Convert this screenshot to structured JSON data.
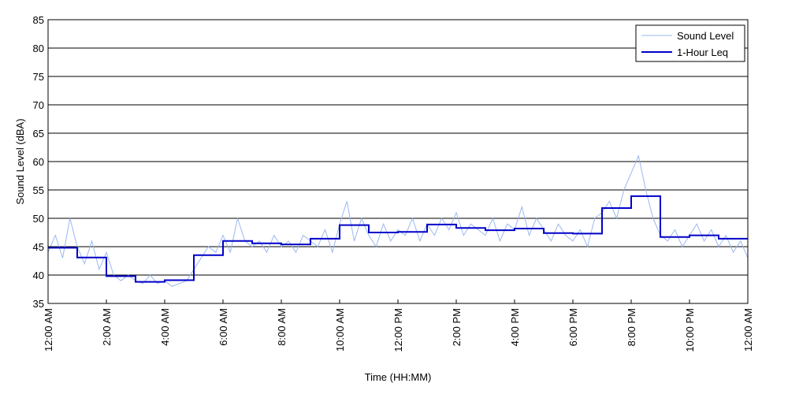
{
  "chart_data": {
    "type": "line",
    "xlabel": "Time (HH:MM)",
    "ylabel": "Sound Level (dBA)",
    "xlim": [
      0,
      24
    ],
    "ylim": [
      35,
      85
    ],
    "y_ticks": [
      35,
      40,
      45,
      50,
      55,
      60,
      65,
      70,
      75,
      80,
      85
    ],
    "x_ticks": [
      0,
      2,
      4,
      6,
      8,
      10,
      12,
      14,
      16,
      18,
      20,
      22,
      24
    ],
    "x_tick_labels": [
      "12:00 AM",
      "2:00 AM",
      "4:00 AM",
      "6:00 AM",
      "8:00 AM",
      "10:00 AM",
      "12:00 PM",
      "2:00 PM",
      "4:00 PM",
      "6:00 PM",
      "8:00 PM",
      "10:00 PM",
      "12:00 AM"
    ],
    "grid": "horizontal",
    "legend_position": "top-right",
    "series": [
      {
        "name": "Sound Level",
        "color": "#9ab8f0",
        "style": "thin",
        "x": [
          0,
          0.25,
          0.5,
          0.75,
          1,
          1.25,
          1.5,
          1.75,
          2,
          2.25,
          2.5,
          2.75,
          3,
          3.25,
          3.5,
          3.75,
          4,
          4.25,
          4.5,
          4.75,
          5,
          5.25,
          5.5,
          5.75,
          6,
          6.25,
          6.5,
          6.75,
          7,
          7.25,
          7.5,
          7.75,
          8,
          8.25,
          8.5,
          8.75,
          9,
          9.25,
          9.5,
          9.75,
          10,
          10.25,
          10.5,
          10.75,
          11,
          11.25,
          11.5,
          11.75,
          12,
          12.25,
          12.5,
          12.75,
          13,
          13.25,
          13.5,
          13.75,
          14,
          14.25,
          14.5,
          14.75,
          15,
          15.25,
          15.5,
          15.75,
          16,
          16.25,
          16.5,
          16.75,
          17,
          17.25,
          17.5,
          17.75,
          18,
          18.25,
          18.5,
          18.75,
          19,
          19.25,
          19.5,
          19.75,
          20,
          20.25,
          20.5,
          20.75,
          21,
          21.25,
          21.5,
          21.75,
          22,
          22.25,
          22.5,
          22.75,
          23,
          23.25,
          23.5,
          23.75,
          24
        ],
        "values": [
          44,
          47,
          43,
          50,
          45,
          42,
          46,
          41,
          44,
          40,
          39,
          40,
          39,
          38.5,
          40,
          38.5,
          39,
          38,
          38.5,
          39,
          41,
          43,
          45,
          44,
          47,
          44,
          50,
          46,
          45,
          46,
          44,
          47,
          45,
          46,
          44,
          47,
          46,
          45,
          48,
          44,
          49,
          53,
          46,
          50,
          47,
          45,
          49,
          46,
          48,
          47,
          50,
          46,
          49,
          47,
          50,
          48,
          51,
          47,
          49,
          48,
          47,
          50,
          46,
          49,
          48,
          52,
          47,
          50,
          48,
          46,
          49,
          47,
          46,
          48,
          45,
          50,
          51,
          53,
          50,
          55,
          58,
          61,
          55,
          50,
          47,
          46,
          48,
          45,
          47,
          49,
          46,
          48,
          45,
          47,
          44,
          46,
          43
        ]
      },
      {
        "name": "1-Hour Leq",
        "color": "#0000c8",
        "style": "step",
        "hour_start": [
          0,
          1,
          2,
          3,
          4,
          5,
          6,
          7,
          8,
          9,
          10,
          11,
          12,
          13,
          14,
          15,
          16,
          17,
          18,
          19,
          20,
          21,
          22,
          23
        ],
        "values": [
          44.8,
          43.1,
          39.8,
          38.8,
          39.1,
          43.5,
          46.0,
          45.6,
          45.4,
          46.4,
          48.8,
          47.5,
          47.6,
          48.9,
          48.3,
          47.9,
          48.2,
          47.4,
          47.3,
          51.8,
          53.9,
          46.7,
          47.0,
          46.4
        ]
      }
    ]
  }
}
